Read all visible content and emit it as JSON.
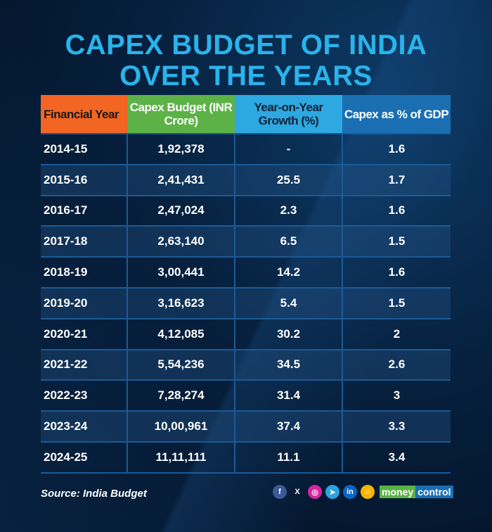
{
  "title": {
    "line1": "CAPEX BUDGET OF INDIA",
    "line2": "OVER THE YEARS"
  },
  "chart_data": {
    "type": "table",
    "columns": [
      "Financial Year",
      "Capex Budget (INR Crore)",
      "Year-on-Year Growth (%)",
      "Capex as % of GDP"
    ],
    "header_colors": [
      "#f26522",
      "#5cb247",
      "#2ea8e0",
      "#1a6fb3"
    ],
    "rows": [
      [
        "2014-15",
        "1,92,378",
        "-",
        "1.6"
      ],
      [
        "2015-16",
        "2,41,431",
        "25.5",
        "1.7"
      ],
      [
        "2016-17",
        "2,47,024",
        "2.3",
        "1.6"
      ],
      [
        "2017-18",
        "2,63,140",
        "6.5",
        "1.5"
      ],
      [
        "2018-19",
        "3,00,441",
        "14.2",
        "1.6"
      ],
      [
        "2019-20",
        "3,16,623",
        "5.4",
        "1.5"
      ],
      [
        "2020-21",
        "4,12,085",
        "30.2",
        "2"
      ],
      [
        "2021-22",
        "5,54,236",
        "34.5",
        "2.6"
      ],
      [
        "2022-23",
        "7,28,274",
        "31.4",
        "3"
      ],
      [
        "2023-24",
        "10,00,961",
        "37.4",
        "3.3"
      ],
      [
        "2024-25",
        "11,11,111",
        "11.1",
        "3.4"
      ]
    ]
  },
  "footer": {
    "source": "Source: India Budget",
    "icons": [
      "facebook-icon",
      "x-icon",
      "instagram-icon",
      "telegram-icon",
      "linkedin-icon",
      "koo-icon"
    ],
    "icon_glyphs": [
      "f",
      "X",
      "◎",
      "➤",
      "in",
      "☺"
    ],
    "logo": {
      "part1": "money",
      "part2": "control"
    }
  }
}
